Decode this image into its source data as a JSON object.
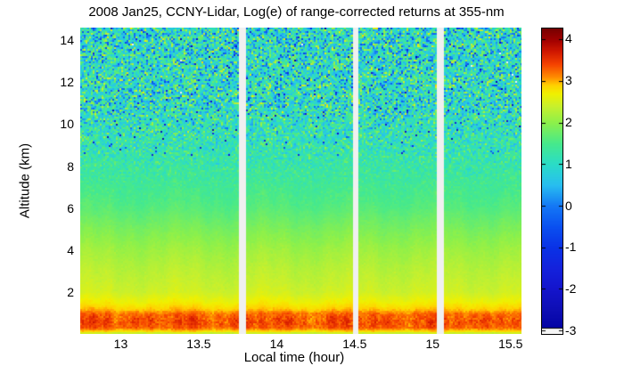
{
  "title": "2008 Jan25, CCNY-Lidar, Log(e) of range-corrected returns at 355-nm",
  "chart_data": {
    "type": "heatmap",
    "title": "2008 Jan25, CCNY-Lidar, Log(e) of range-corrected returns at 355-nm",
    "xlabel": "Local time (hour)",
    "ylabel": "Altitude (km)",
    "x_range_hours": [
      12.74,
      15.57
    ],
    "x_ticks": [
      13,
      13.5,
      14,
      14.5,
      15,
      15.5
    ],
    "x_tick_labels": [
      "13",
      "13.5",
      "14",
      "14.5",
      "15",
      "15.5"
    ],
    "y_range_km": [
      0,
      14.6
    ],
    "y_ticks": [
      2,
      4,
      6,
      8,
      10,
      12,
      14
    ],
    "y_tick_labels": [
      "2",
      "4",
      "6",
      "8",
      "10",
      "12",
      "14"
    ],
    "colorbar": {
      "range": [
        -3.06,
        4.26
      ],
      "ticks": [
        4,
        3,
        2,
        1,
        0,
        -1,
        -2,
        -3
      ],
      "tick_labels": [
        "4",
        "3",
        "2",
        "1",
        "0",
        "-1",
        "-2",
        "-3"
      ],
      "below_min_color": "#F2F2F2"
    },
    "data_gaps_hours": [
      [
        13.766,
        13.795
      ],
      [
        14.493,
        14.522
      ],
      [
        15.037,
        15.065
      ]
    ],
    "gap_color": "#F0F0F0",
    "mean_profile_alt_value": [
      [
        0.0,
        2.15
      ],
      [
        0.06,
        2.55
      ],
      [
        0.15,
        2.95
      ],
      [
        0.3,
        3.3
      ],
      [
        0.55,
        3.38
      ],
      [
        0.95,
        3.25
      ],
      [
        1.15,
        2.95
      ],
      [
        1.5,
        2.7
      ],
      [
        2.0,
        2.45
      ],
      [
        3.0,
        2.3
      ],
      [
        4.0,
        2.12
      ],
      [
        5.0,
        1.88
      ],
      [
        6.0,
        1.62
      ],
      [
        7.0,
        1.45
      ],
      [
        8.0,
        1.3
      ],
      [
        9.0,
        1.18
      ],
      [
        10.0,
        1.1
      ],
      [
        12.0,
        1.02
      ],
      [
        14.6,
        0.97
      ]
    ],
    "noise_sigma_profile": [
      [
        0.0,
        0.04
      ],
      [
        6.0,
        0.05
      ],
      [
        7.0,
        0.12
      ],
      [
        8.0,
        0.3
      ],
      [
        9.0,
        0.55
      ],
      [
        10.0,
        0.75
      ],
      [
        11.0,
        0.95
      ],
      [
        14.6,
        1.05
      ]
    ],
    "colormap_anchors": [
      [
        -3.06,
        "#0000A0"
      ],
      [
        -2.5,
        "#0E0EB4"
      ],
      [
        -2.0,
        "#1414CC"
      ],
      [
        -1.5,
        "#1422DC"
      ],
      [
        -1.0,
        "#0A32E6"
      ],
      [
        -0.5,
        "#0A50F0"
      ],
      [
        0.0,
        "#1478F5"
      ],
      [
        0.5,
        "#28BEF0"
      ],
      [
        1.0,
        "#2ADCC8"
      ],
      [
        1.5,
        "#46E98C"
      ],
      [
        2.0,
        "#8CF04B"
      ],
      [
        2.4,
        "#C8F02D"
      ],
      [
        2.7,
        "#F0F000"
      ],
      [
        2.9,
        "#FFD200"
      ],
      [
        3.1,
        "#FF8C00"
      ],
      [
        3.4,
        "#F54400"
      ],
      [
        3.7,
        "#D21900"
      ],
      [
        4.0,
        "#A00000"
      ],
      [
        4.26,
        "#780000"
      ]
    ]
  }
}
